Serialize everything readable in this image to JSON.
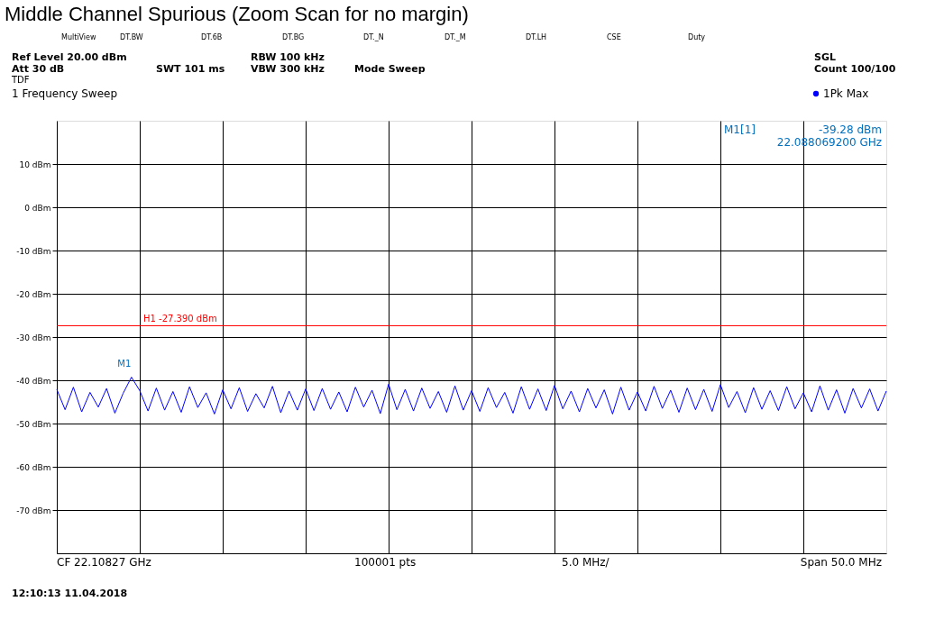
{
  "chart_data": {
    "type": "line",
    "title": "Middle Channel Spurious (Zoom Scan for no margin)",
    "categories": [
      null,
      null,
      null,
      null,
      null,
      null,
      null,
      null,
      null,
      null,
      null,
      null,
      null,
      null,
      null,
      null,
      null,
      null,
      null,
      null,
      null,
      null,
      null,
      null,
      null,
      null,
      null,
      null,
      null,
      null,
      null,
      null,
      null,
      null,
      null,
      null,
      null,
      null,
      null,
      null,
      null,
      null,
      null,
      null,
      null,
      null,
      null,
      null,
      null,
      null,
      null,
      null,
      null,
      null,
      null,
      null,
      null,
      null,
      null,
      null,
      null,
      null,
      null,
      null,
      null,
      null,
      null,
      null,
      null,
      null,
      null,
      null,
      null,
      null,
      null,
      null,
      null,
      null,
      null,
      null,
      null,
      null,
      null,
      null,
      null,
      null,
      null,
      null,
      null,
      null,
      null,
      null,
      null,
      null,
      null,
      null,
      null,
      null,
      null,
      null,
      null
    ],
    "series": [
      {
        "name": "1Pk Max",
        "color": "#0000ff",
        "values": [
          -42.1,
          -46.8,
          -41.6,
          -47.3,
          -42.8,
          -46.2,
          -41.9,
          -47.6,
          -43.0,
          -39.28,
          -42.4,
          -47.1,
          -41.8,
          -46.9,
          -42.6,
          -47.4,
          -41.5,
          -46.3,
          -42.9,
          -47.8,
          -42.2,
          -46.6,
          -41.7,
          -47.2,
          -43.1,
          -46.4,
          -41.4,
          -47.5,
          -42.5,
          -46.9,
          -42.0,
          -47.0,
          -41.9,
          -46.7,
          -42.7,
          -47.3,
          -41.6,
          -46.2,
          -42.3,
          -47.7,
          -40.9,
          -46.8,
          -42.1,
          -47.1,
          -41.8,
          -46.5,
          -42.6,
          -47.4,
          -41.3,
          -46.9,
          -42.4,
          -47.2,
          -41.7,
          -46.3,
          -42.8,
          -47.6,
          -41.5,
          -46.7,
          -42.0,
          -47.0,
          -41.2,
          -46.6,
          -42.5,
          -47.3,
          -41.9,
          -46.4,
          -42.2,
          -47.8,
          -41.6,
          -46.9,
          -42.7,
          -47.1,
          -41.4,
          -46.5,
          -42.3,
          -47.4,
          -41.8,
          -46.8,
          -42.1,
          -47.2,
          -41.0,
          -46.3,
          -42.6,
          -47.5,
          -41.7,
          -46.7,
          -42.4,
          -47.0,
          -41.5,
          -46.6,
          -42.9,
          -47.3,
          -41.3,
          -46.9,
          -42.2,
          -47.6,
          -41.9,
          -46.4,
          -42.0,
          -47.1,
          -42.5
        ]
      }
    ],
    "ylim": [
      -80,
      20
    ],
    "yticks": [
      {
        "value": -70,
        "label": "-70 dBm"
      },
      {
        "value": -60,
        "label": "-60 dBm"
      },
      {
        "value": -50,
        "label": "-50 dBm"
      },
      {
        "value": -40,
        "label": "-40 dBm"
      },
      {
        "value": -30,
        "label": "-30 dBm"
      },
      {
        "value": -20,
        "label": "-20 dBm"
      },
      {
        "value": -10,
        "label": "-10 dBm"
      },
      {
        "value": 0,
        "label": "0 dBm"
      },
      {
        "value": 10,
        "label": "10 dBm"
      }
    ],
    "grid": true,
    "legend": "top right",
    "line_style": "solid",
    "ref_lines": [
      {
        "axis": "y",
        "value": -27.39,
        "label": "H1 -27.390 dBm",
        "color": "#ff0000"
      }
    ],
    "annotations": [
      "MultiView",
      "DT.BW",
      "DT.6B",
      "DT.BG",
      "DT._N",
      "DT._M",
      "DT.LH",
      "CSE",
      "Duty",
      "Ref Level 20.00 dBm",
      "Att 30 dB",
      "TDF",
      "SWT 101 ms",
      "RBW 100 kHz",
      "VBW 300 kHz",
      "Mode Sweep",
      "SGL",
      "Count 100/100",
      "1 Frequency Sweep",
      "M1[1]",
      "-39.28 dBm",
      "22.088069200 GHz",
      "CF 22.10827 GHz",
      "100001 pts",
      "5.0 MHz/",
      "Span 50.0 MHz",
      "12:10:13 11.04.2018",
      "M1"
    ]
  }
}
